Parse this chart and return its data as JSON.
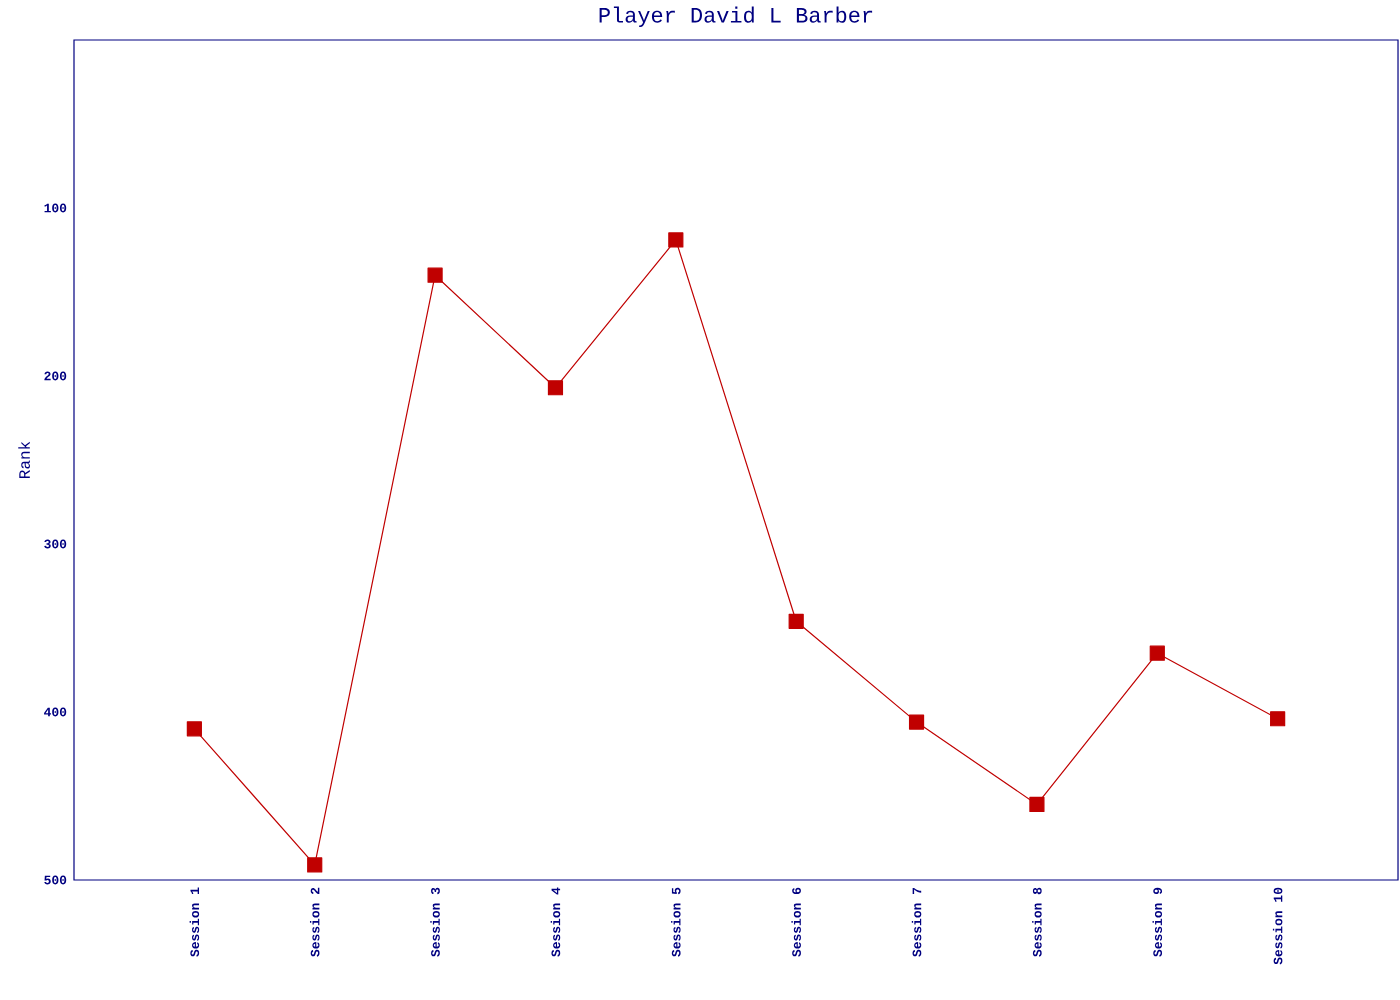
{
  "chart_data": {
    "type": "line",
    "title": "Player David L Barber",
    "ylabel": "Rank",
    "categories": [
      "Session 1",
      "Session 2",
      "Session 3",
      "Session 4",
      "Session 5",
      "Session 6",
      "Session 7",
      "Session 8",
      "Session 9",
      "Session 10"
    ],
    "series": [
      {
        "color": "#c00000",
        "values": [
          410,
          491,
          140,
          207,
          119,
          346,
          406,
          455,
          365,
          404
        ]
      }
    ],
    "ylim": [
      500,
      0
    ],
    "yticks": [
      100,
      200,
      300,
      400,
      500
    ],
    "marker": "square",
    "line_style": "solid",
    "grid": false
  }
}
